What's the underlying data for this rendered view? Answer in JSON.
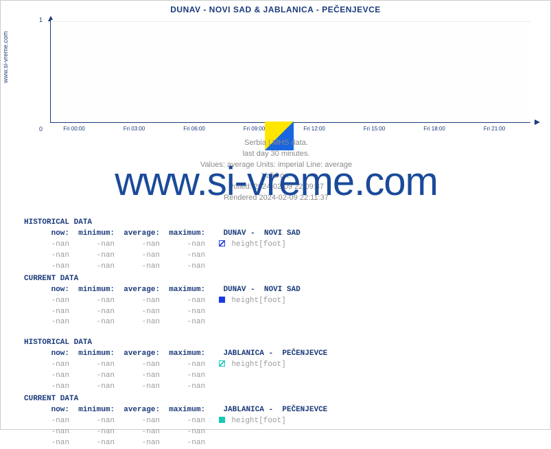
{
  "site_label": "www.si-vreme.com",
  "watermark": "www.si-vreme.com",
  "chart": {
    "type": "line",
    "title": "DUNAV -  NOVI SAD &  JABLANICA -  PEČENJEVCE",
    "ylim": [
      0,
      1
    ],
    "yticks": [
      0,
      1
    ],
    "xtick_labels": [
      "Fri 00:00",
      "Fri 03:00",
      "Fri 06:00",
      "Fri 09:00",
      "Fri 12:00",
      "Fri 15:00",
      "Fri 18:00",
      "Fri 21:00"
    ],
    "xtick_positions_pct": [
      5,
      17.5,
      30,
      42.5,
      55,
      67.5,
      80,
      92.5
    ],
    "grid_color": "#eeeeee",
    "axis_color": "#1a3a7a",
    "background_color": "#ffffff",
    "legend_icon_colors": [
      "#ffe600",
      "#1a66e0"
    ]
  },
  "meta": {
    "line1": "Serbia | MHS data.",
    "line2": "last day 30 minutes.",
    "line3": "Values: average  Units: imperial  Line: average",
    "line4": "Valid on:",
    "line5": "Polled: 2024-02-09 22:09:37",
    "line6": "Rendered 2024-02-09 22:11:37"
  },
  "columns": [
    "now:",
    "minimum:",
    "average:",
    "maximum:"
  ],
  "sections": [
    {
      "title": "HISTORICAL DATA",
      "station": "DUNAV -  NOVI SAD",
      "swatch_class": "sw-hatch-blue",
      "measure": "height[foot]",
      "rows": [
        [
          "-nan",
          "-nan",
          "-nan",
          "-nan"
        ],
        [
          "-nan",
          "-nan",
          "-nan",
          "-nan"
        ],
        [
          "-nan",
          "-nan",
          "-nan",
          "-nan"
        ]
      ]
    },
    {
      "title": "CURRENT DATA",
      "station": "DUNAV -  NOVI SAD",
      "swatch_class": "sw-solid-blue",
      "measure": "height[foot]",
      "rows": [
        [
          "-nan",
          "-nan",
          "-nan",
          "-nan"
        ],
        [
          "-nan",
          "-nan",
          "-nan",
          "-nan"
        ],
        [
          "-nan",
          "-nan",
          "-nan",
          "-nan"
        ]
      ]
    },
    {
      "title": "HISTORICAL DATA",
      "station": "JABLANICA -  PEČENJEVCE",
      "swatch_class": "sw-hatch-cyan",
      "measure": "height[foot]",
      "rows": [
        [
          "-nan",
          "-nan",
          "-nan",
          "-nan"
        ],
        [
          "-nan",
          "-nan",
          "-nan",
          "-nan"
        ],
        [
          "-nan",
          "-nan",
          "-nan",
          "-nan"
        ]
      ]
    },
    {
      "title": "CURRENT DATA",
      "station": "JABLANICA -  PEČENJEVCE",
      "swatch_class": "sw-solid-cyan",
      "measure": "height[foot]",
      "rows": [
        [
          "-nan",
          "-nan",
          "-nan",
          "-nan"
        ],
        [
          "-nan",
          "-nan",
          "-nan",
          "-nan"
        ],
        [
          "-nan",
          "-nan",
          "-nan",
          "-nan"
        ]
      ]
    }
  ]
}
